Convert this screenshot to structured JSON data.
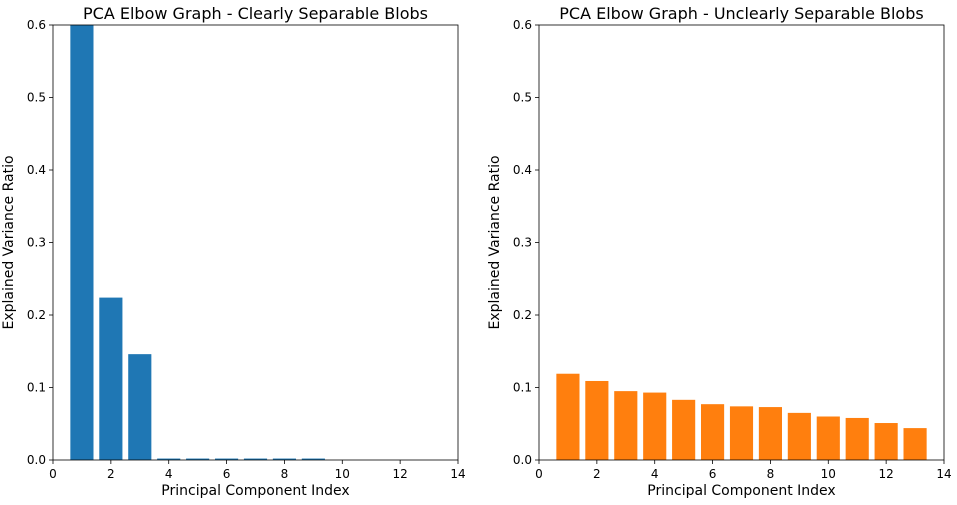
{
  "chart_data": [
    {
      "type": "bar",
      "title": "PCA Elbow Graph - Clearly Separable Blobs",
      "xlabel": "Principal Component Index",
      "ylabel": "Explained Variance Ratio",
      "xlim": [
        0,
        14
      ],
      "ylim": [
        0,
        0.6
      ],
      "xticks": [
        0,
        2,
        4,
        6,
        8,
        10,
        12,
        14
      ],
      "yticks": [
        0.0,
        0.1,
        0.2,
        0.3,
        0.4,
        0.5,
        0.6
      ],
      "color": "#1f77b4",
      "x": [
        1,
        2,
        3,
        4,
        5,
        6,
        7,
        8,
        9,
        10,
        11,
        12,
        13
      ],
      "values": [
        0.62,
        0.224,
        0.146,
        0.002,
        0.002,
        0.002,
        0.002,
        0.002,
        0.002,
        0.0,
        0.0,
        0.0,
        0.0
      ]
    },
    {
      "type": "bar",
      "title": "PCA Elbow Graph - Unclearly Separable Blobs",
      "xlabel": "Principal Component Index",
      "ylabel": "Explained Variance Ratio",
      "xlim": [
        0,
        14
      ],
      "ylim": [
        0,
        0.6
      ],
      "xticks": [
        0,
        2,
        4,
        6,
        8,
        10,
        12,
        14
      ],
      "yticks": [
        0.0,
        0.1,
        0.2,
        0.3,
        0.4,
        0.5,
        0.6
      ],
      "color": "#ff7f0e",
      "x": [
        1,
        2,
        3,
        4,
        5,
        6,
        7,
        8,
        9,
        10,
        11,
        12,
        13
      ],
      "values": [
        0.119,
        0.109,
        0.095,
        0.093,
        0.083,
        0.077,
        0.074,
        0.073,
        0.065,
        0.06,
        0.058,
        0.051,
        0.044
      ]
    }
  ]
}
